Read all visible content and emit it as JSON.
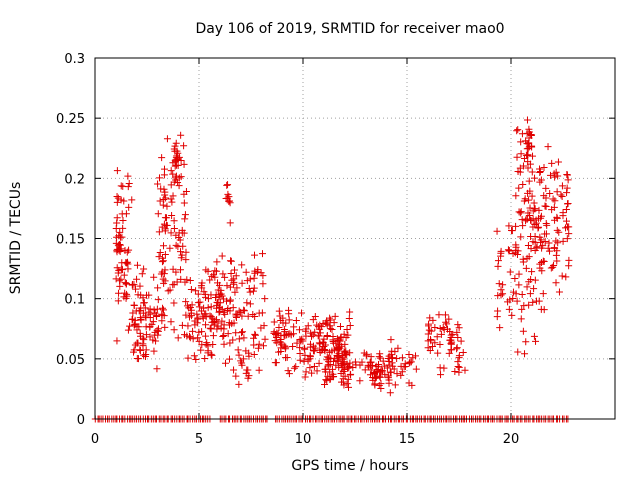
{
  "chart_data": {
    "type": "scatter",
    "title": "Day 106 of 2019, SRMTID for receiver mao0",
    "xlabel": "GPS time / hours",
    "ylabel": "SRMTID / TECUs",
    "xlim": [
      0,
      25
    ],
    "ylim": [
      0,
      0.3
    ],
    "xticks": [
      0,
      5,
      10,
      15,
      20
    ],
    "xtick_labels": [
      "0",
      "5",
      "10",
      "15",
      "20"
    ],
    "yticks": [
      0,
      0.05,
      0.1,
      0.15,
      0.2,
      0.25,
      0.3
    ],
    "ytick_labels": [
      "0",
      "0.05",
      "0.1",
      "0.15",
      "0.2",
      "0.25",
      "0.3"
    ],
    "grid": true,
    "marker": "plus",
    "marker_color": "#e00000",
    "series": [
      {
        "name": "SRMTID",
        "clusters": [
          {
            "x": [
              1.0,
              1.8
            ],
            "y": [
              0.06,
              0.22
            ],
            "n": 70,
            "seed": 11
          },
          {
            "x": [
              1.8,
              3.0
            ],
            "y": [
              0.03,
              0.13
            ],
            "n": 80,
            "seed": 12
          },
          {
            "x": [
              3.0,
              4.4
            ],
            "y": [
              0.05,
              0.24
            ],
            "n": 110,
            "seed": 13
          },
          {
            "x": [
              3.8,
              4.1
            ],
            "y": [
              0.19,
              0.24
            ],
            "n": 20,
            "seed": 14
          },
          {
            "x": [
              4.4,
              5.6
            ],
            "y": [
              0.04,
              0.13
            ],
            "n": 70,
            "seed": 15
          },
          {
            "x": [
              5.6,
              6.6
            ],
            "y": [
              0.04,
              0.15
            ],
            "n": 70,
            "seed": 16
          },
          {
            "x": [
              6.3,
              6.6
            ],
            "y": [
              0.15,
              0.22
            ],
            "n": 10,
            "seed": 17
          },
          {
            "x": [
              6.6,
              8.2
            ],
            "y": [
              0.02,
              0.15
            ],
            "n": 80,
            "seed": 18
          },
          {
            "x": [
              8.6,
              10.0
            ],
            "y": [
              0.03,
              0.1
            ],
            "n": 60,
            "seed": 19
          },
          {
            "x": [
              10.0,
              11.0
            ],
            "y": [
              0.03,
              0.09
            ],
            "n": 50,
            "seed": 20
          },
          {
            "x": [
              11.0,
              12.3
            ],
            "y": [
              0.02,
              0.09
            ],
            "n": 120,
            "seed": 21
          },
          {
            "x": [
              12.3,
              13.2
            ],
            "y": [
              0.03,
              0.06
            ],
            "n": 12,
            "seed": 22
          },
          {
            "x": [
              13.2,
              14.2
            ],
            "y": [
              0.02,
              0.06
            ],
            "n": 50,
            "seed": 23
          },
          {
            "x": [
              14.2,
              15.5
            ],
            "y": [
              0.02,
              0.07
            ],
            "n": 30,
            "seed": 24
          },
          {
            "x": [
              16.0,
              17.0
            ],
            "y": [
              0.03,
              0.1
            ],
            "n": 30,
            "seed": 25
          },
          {
            "x": [
              17.0,
              17.8
            ],
            "y": [
              0.02,
              0.1
            ],
            "n": 30,
            "seed": 26
          },
          {
            "x": [
              19.3,
              19.6
            ],
            "y": [
              0.07,
              0.18
            ],
            "n": 15,
            "seed": 27
          },
          {
            "x": [
              19.8,
              20.2
            ],
            "y": [
              0.07,
              0.17
            ],
            "n": 15,
            "seed": 28
          },
          {
            "x": [
              20.2,
              21.2
            ],
            "y": [
              0.05,
              0.25
            ],
            "n": 90,
            "seed": 29
          },
          {
            "x": [
              20.7,
              21.0
            ],
            "y": [
              0.2,
              0.255
            ],
            "n": 20,
            "seed": 30
          },
          {
            "x": [
              21.2,
              22.8
            ],
            "y": [
              0.08,
              0.24
            ],
            "n": 100,
            "seed": 31
          }
        ],
        "zero_line": {
          "x": [
            0.0,
            22.8
          ],
          "y": 0,
          "n": 240,
          "seed": 40,
          "gaps": [
            [
              5.6,
              6.0
            ],
            [
              8.3,
              8.6
            ]
          ]
        }
      }
    ]
  }
}
